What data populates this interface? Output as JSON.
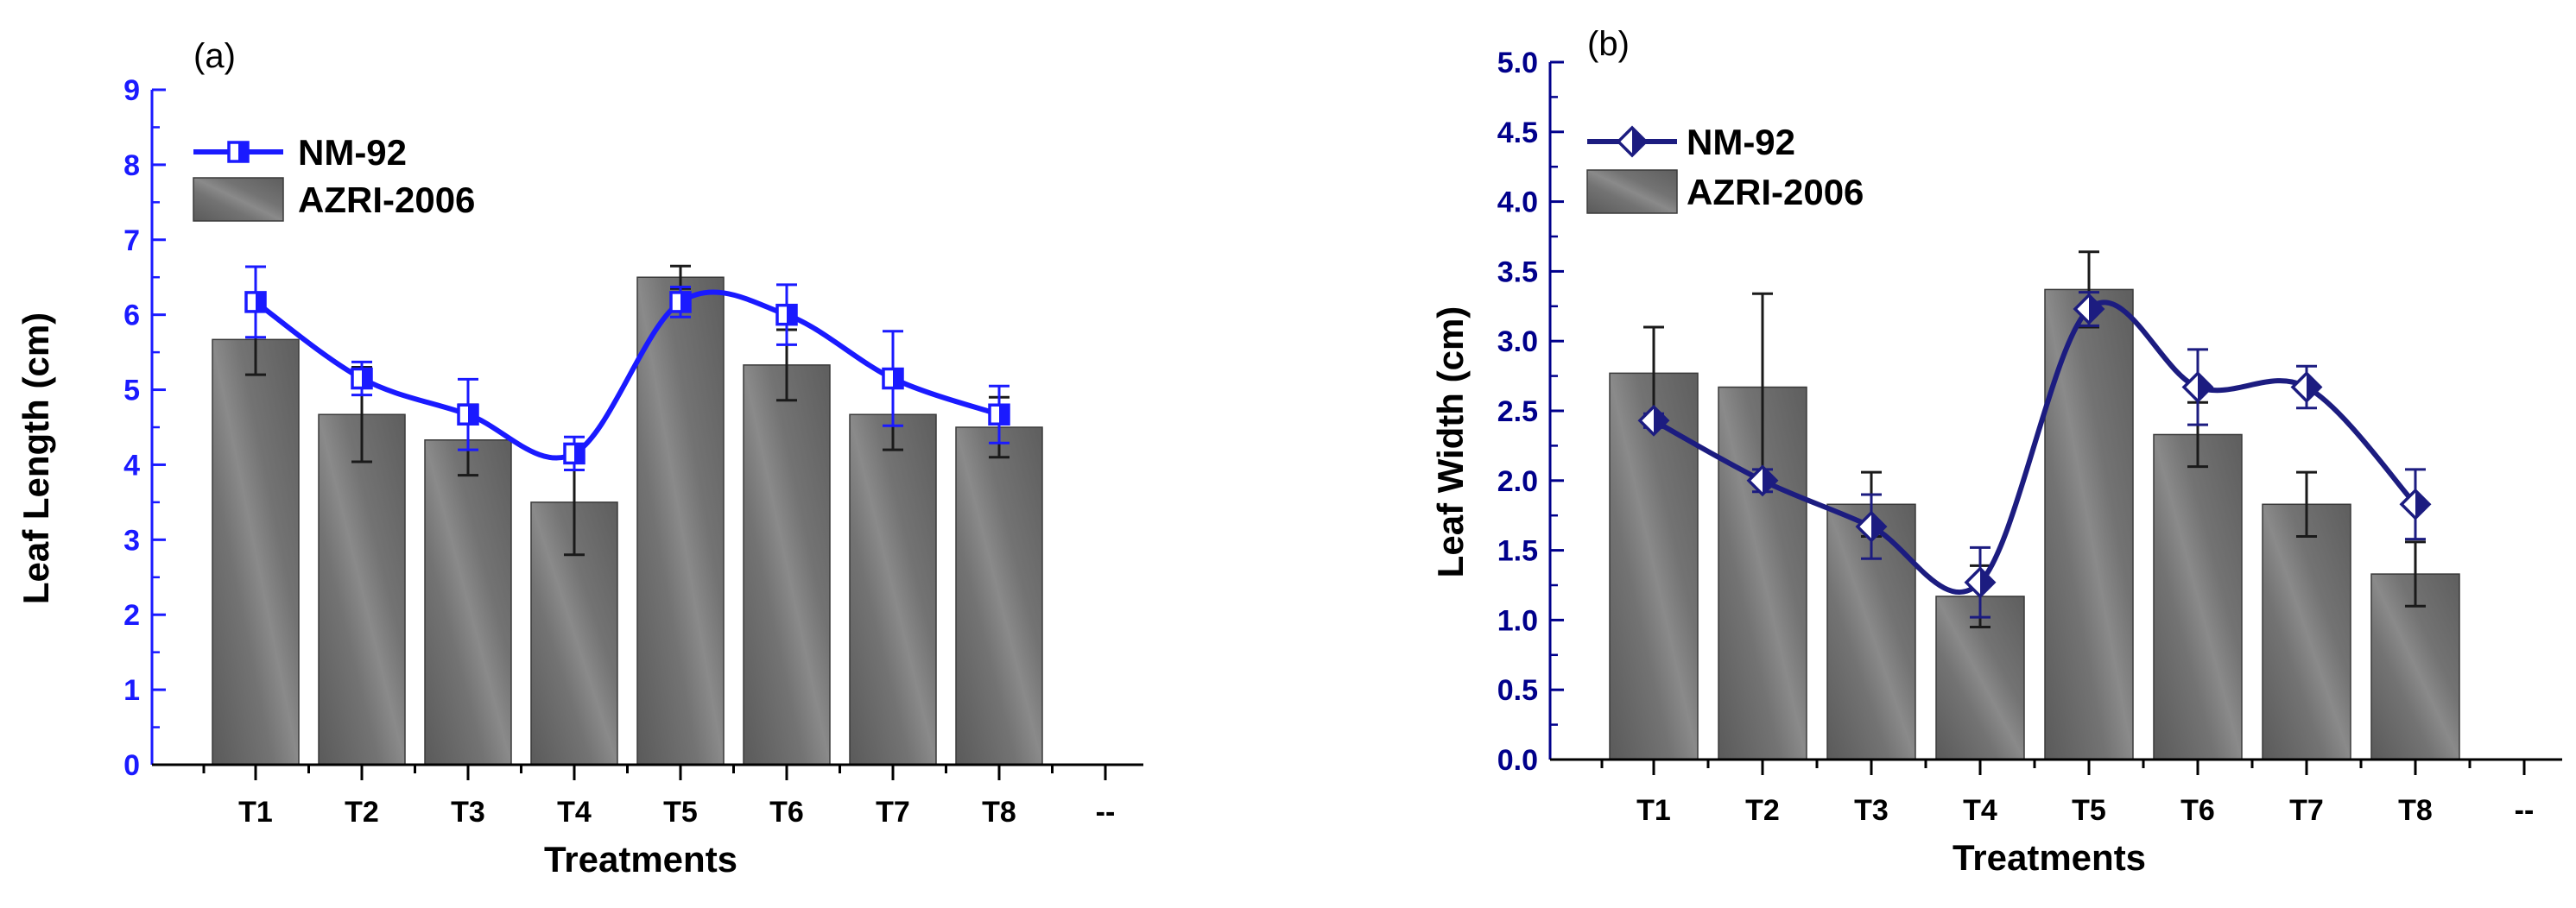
{
  "chart_data": [
    {
      "panel_label": "(a)",
      "type": "bar+line",
      "categories": [
        "T1",
        "T2",
        "T3",
        "T4",
        "T5",
        "T6",
        "T7",
        "T8"
      ],
      "extra_tick_label": "--",
      "xlabel": "Treatments",
      "ylabel": "Leaf Length (cm)",
      "ylim": [
        0,
        9
      ],
      "yticks": [
        "0",
        "1",
        "2",
        "3",
        "4",
        "5",
        "6",
        "7",
        "8",
        "9"
      ],
      "axis_color": "#1a1aff",
      "line_color": "#1a1aff",
      "marker": "half-filled-square",
      "bar_color": "#6e6e6e",
      "legend_position": "top-left",
      "series": [
        {
          "name": "NM-92",
          "kind": "line",
          "values": [
            6.17,
            5.15,
            4.67,
            4.15,
            6.17,
            6.0,
            5.15,
            4.67
          ],
          "errors": [
            0.47,
            0.22,
            0.47,
            0.22,
            0.2,
            0.4,
            0.63,
            0.38
          ]
        },
        {
          "name": "AZRI-2006",
          "kind": "bar",
          "values": [
            5.67,
            4.67,
            4.33,
            3.5,
            6.5,
            5.33,
            4.67,
            4.5
          ],
          "errors": [
            0.47,
            0.63,
            0.47,
            0.7,
            0.15,
            0.47,
            0.47,
            0.4
          ]
        }
      ]
    },
    {
      "panel_label": "(b)",
      "type": "bar+line",
      "categories": [
        "T1",
        "T2",
        "T3",
        "T4",
        "T5",
        "T6",
        "T7",
        "T8"
      ],
      "extra_tick_label": "--",
      "xlabel": "Treatments",
      "ylabel": "Leaf Width (cm)",
      "ylim": [
        0,
        5
      ],
      "yticks": [
        "0.0",
        "0.5",
        "1.0",
        "1.5",
        "2.0",
        "2.5",
        "3.0",
        "3.5",
        "4.0",
        "4.5",
        "5.0"
      ],
      "axis_color": "#00008b",
      "line_color": "#1c1c80",
      "marker": "half-filled-diamond",
      "bar_color": "#6e6e6e",
      "legend_position": "top-left",
      "series": [
        {
          "name": "NM-92",
          "kind": "line",
          "values": [
            2.43,
            2.0,
            1.67,
            1.27,
            3.23,
            2.67,
            2.67,
            1.83
          ],
          "errors": [
            0.05,
            0.08,
            0.23,
            0.25,
            0.12,
            0.27,
            0.15,
            0.25
          ]
        },
        {
          "name": "AZRI-2006",
          "kind": "bar",
          "values": [
            2.77,
            2.67,
            1.83,
            1.17,
            3.37,
            2.33,
            1.83,
            1.33
          ],
          "errors": [
            0.33,
            0.67,
            0.23,
            0.22,
            0.27,
            0.23,
            0.23,
            0.23
          ]
        }
      ]
    }
  ]
}
